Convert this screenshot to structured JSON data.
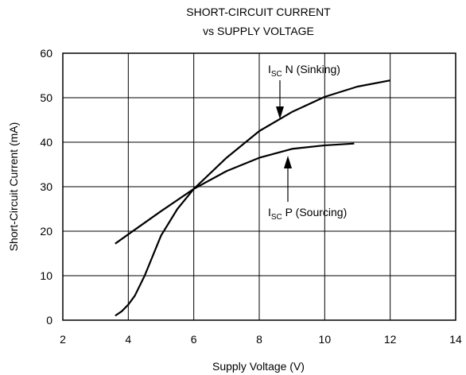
{
  "chart_data": {
    "type": "line",
    "title": [
      "SHORT-CIRCUIT CURRENT",
      "vs SUPPLY VOLTAGE"
    ],
    "xlabel": "Supply Voltage (V)",
    "ylabel": "Short-Circuit Current (mA)",
    "xlim": [
      2,
      14
    ],
    "xticks": [
      2,
      4,
      6,
      8,
      10,
      12,
      14
    ],
    "ylim": [
      0,
      60
    ],
    "yticks": [
      0,
      10,
      20,
      30,
      40,
      50,
      60
    ],
    "grid": true,
    "series": [
      {
        "color": "#000000",
        "x": [
          3.6,
          4,
          5,
          6,
          7,
          8,
          9,
          10,
          11,
          12
        ],
        "values": [
          17.2,
          19.3,
          24.5,
          29.5,
          36.5,
          42.5,
          46.8,
          50.2,
          52.5,
          53.9
        ]
      },
      {
        "color": "#000000",
        "x": [
          3.6,
          3.8,
          4,
          4.2,
          4.5,
          5,
          5.5,
          6,
          7,
          8,
          9,
          10,
          10.9
        ],
        "values": [
          1,
          2,
          3.5,
          5.5,
          10,
          19,
          25,
          29.5,
          33.5,
          36.5,
          38.5,
          39.3,
          39.7
        ]
      }
    ],
    "annotations": [
      {
        "base": "I",
        "sub": "SC",
        "text": " N (Sinking)"
      },
      {
        "base": "I",
        "sub": "SC",
        "text": " P (Sourcing)"
      }
    ]
  }
}
